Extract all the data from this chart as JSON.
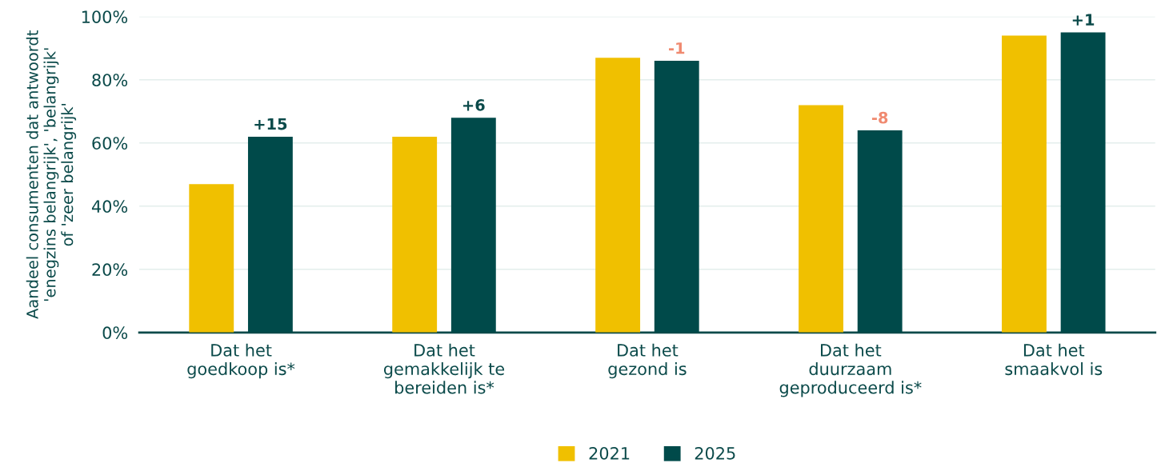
{
  "chart_data": {
    "type": "bar",
    "ylabel": "Aandeel consumenten dat antwoordt\n'enegzins belangrijk', 'belangrijk'\nof 'zeer belangrijk'",
    "categories": [
      "Dat het\ngoedkoop is*",
      "Dat het\ngemakkelijk te\nbereiden is*",
      "Dat het\ngezond is",
      "Dat het\nduurzaam\ngeproduceerd is*",
      "Dat het\nsmaakvol is"
    ],
    "series": [
      {
        "name": "2021",
        "color": "#f0c000",
        "values": [
          47,
          62,
          87,
          72,
          94
        ]
      },
      {
        "name": "2025",
        "color": "#004a4a",
        "values": [
          62,
          68,
          86,
          64,
          95
        ]
      }
    ],
    "annotations": [
      "+15",
      "+6",
      "-1",
      "-8",
      "+1"
    ],
    "ylim": [
      0,
      100
    ],
    "yticks": [
      {
        "value": 0,
        "label": "0%"
      },
      {
        "value": 20,
        "label": "20%"
      },
      {
        "value": 40,
        "label": "40%"
      },
      {
        "value": 60,
        "label": "60%"
      },
      {
        "value": 80,
        "label": "80%"
      },
      {
        "value": 100,
        "label": "100%"
      }
    ],
    "grid": "y",
    "legend": "bottom"
  }
}
